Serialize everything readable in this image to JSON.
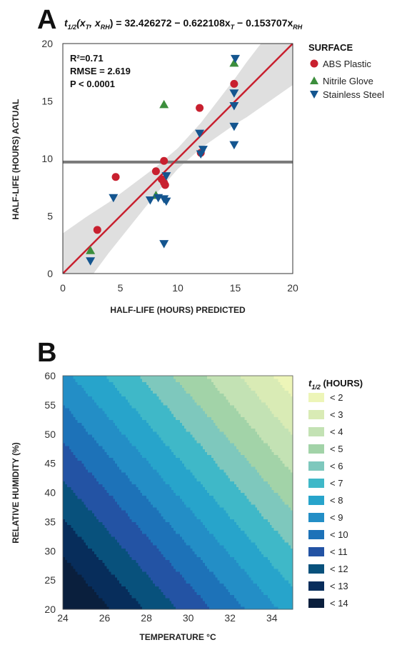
{
  "chart_data": [
    {
      "panel": "A",
      "type": "scatter",
      "equation": {
        "lhs": "t",
        "lhs_sub": "1/2",
        "args_open": "(x",
        "arg1_sub": "T",
        "comma": ", x",
        "arg2_sub": "RH",
        "rhs": ") = 32.426272 − 0.622108x",
        "rhs_sub1": "T",
        "rhs_mid": " − 0.153707x",
        "rhs_sub2": "RH"
      },
      "stats": [
        "R²=0.71",
        "RMSE = 2.619",
        "P < 0.0001"
      ],
      "xlabel": "HALF-LIFE (HOURS) PREDICTED",
      "ylabel": "HALF-LIFE (HOURS) ACTUAL",
      "xlim": [
        0,
        20
      ],
      "ylim": [
        0,
        20
      ],
      "xticks": [
        0,
        5,
        10,
        15,
        20
      ],
      "yticks": [
        0,
        5,
        10,
        15,
        20
      ],
      "grid": false,
      "legend_title": "SURFACE",
      "legend_position": "right",
      "mean_line_y": 9.7,
      "fit_line": {
        "x": [
          0,
          20
        ],
        "y": [
          0,
          20
        ],
        "color": "#c8202f"
      },
      "confidence_band": {
        "x": [
          0,
          2,
          4,
          6,
          8,
          10,
          12,
          14,
          15,
          16,
          18,
          20
        ],
        "lower": [
          -3.5,
          -0.9,
          1.8,
          4.3,
          6.8,
          9.1,
          10.9,
          12.3,
          13.0,
          13.6,
          15.0,
          16.4
        ],
        "upper": [
          3.5,
          4.9,
          6.2,
          7.7,
          9.2,
          10.9,
          13.1,
          15.7,
          17.0,
          18.4,
          21.0,
          23.6
        ]
      },
      "series": [
        {
          "name": "ABS Plastic",
          "marker": "circle",
          "color": "#c8202f",
          "x": [
            3.0,
            4.6,
            8.1,
            8.6,
            8.8,
            8.8,
            8.9,
            11.9,
            12.0,
            14.9
          ],
          "y": [
            3.8,
            8.4,
            8.9,
            8.2,
            9.8,
            7.9,
            7.7,
            14.4,
            10.5,
            16.5
          ]
        },
        {
          "name": "Nitrile Glove",
          "marker": "triangle-up",
          "color": "#3c8e3c",
          "x": [
            2.4,
            8.1,
            8.8,
            14.9
          ],
          "y": [
            2.0,
            6.8,
            14.7,
            18.3
          ]
        },
        {
          "name": "Stainless Steel",
          "marker": "triangle-down",
          "color": "#14558f",
          "x": [
            2.4,
            4.4,
            7.6,
            8.3,
            8.8,
            9.0,
            8.8,
            9.0,
            11.9,
            12.0,
            12.2,
            14.9,
            14.9,
            14.9,
            14.9,
            15.0
          ],
          "y": [
            1.1,
            6.6,
            6.4,
            6.6,
            6.5,
            6.3,
            2.6,
            8.5,
            12.2,
            10.4,
            10.8,
            15.7,
            14.6,
            12.8,
            11.2,
            18.7
          ]
        }
      ]
    },
    {
      "panel": "B",
      "type": "heatmap",
      "title_sub": "1/2",
      "legend_title_base": "t",
      "legend_title_rest": " (HOURS)",
      "xlabel": "TEMPERATURE °C",
      "ylabel": "RELATIVE HUMIDITY (%)",
      "xlim": [
        24,
        35
      ],
      "ylim": [
        20,
        60
      ],
      "xticks": [
        24,
        26,
        28,
        30,
        32,
        34
      ],
      "yticks": [
        20,
        25,
        30,
        35,
        40,
        45,
        50,
        55,
        60
      ],
      "model": {
        "intercept": 32.426272,
        "coef_temperature": -0.622108,
        "coef_humidity": -0.153707
      },
      "levels": [
        {
          "label": "< 2",
          "max": 2,
          "color": "#edf5b8"
        },
        {
          "label": "< 3",
          "max": 3,
          "color": "#d9ebb5"
        },
        {
          "label": "< 4",
          "max": 4,
          "color": "#c3e2b4"
        },
        {
          "label": "< 5",
          "max": 5,
          "color": "#a2d3a8"
        },
        {
          "label": "< 6",
          "max": 6,
          "color": "#7ec8bd"
        },
        {
          "label": "< 7",
          "max": 7,
          "color": "#3fb8c8"
        },
        {
          "label": "< 8",
          "max": 8,
          "color": "#27a4cb"
        },
        {
          "label": "< 9",
          "max": 9,
          "color": "#238ec6"
        },
        {
          "label": "< 10",
          "max": 10,
          "color": "#1d72b8"
        },
        {
          "label": "< 11",
          "max": 11,
          "color": "#2353a4"
        },
        {
          "label": "< 12",
          "max": 12,
          "color": "#08517c"
        },
        {
          "label": "< 13",
          "max": 13,
          "color": "#072d5b"
        },
        {
          "label": "< 14",
          "max": 14,
          "color": "#0a1f3d"
        }
      ]
    }
  ]
}
